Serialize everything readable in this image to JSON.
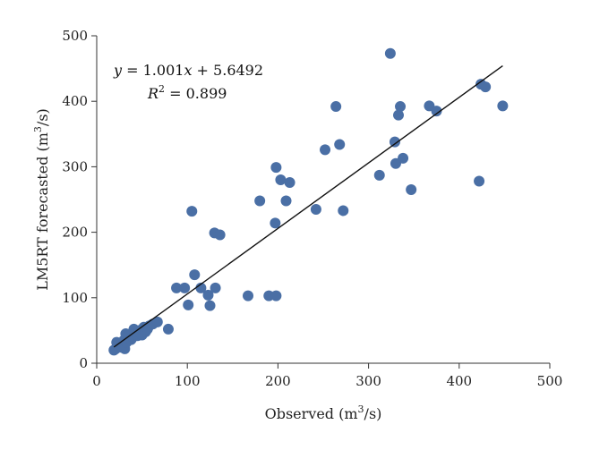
{
  "chart_data": {
    "type": "scatter",
    "title": "",
    "xlabel": {
      "base": "Observed (m",
      "sup": "3",
      "tail": "/s)"
    },
    "ylabel": {
      "base": "LM5RT forecasted (m",
      "sup": "3",
      "tail": "/s)"
    },
    "xlim": [
      0,
      500
    ],
    "ylim": [
      0,
      500
    ],
    "x_ticks": [
      "0",
      "100",
      "200",
      "300",
      "400",
      "500"
    ],
    "y_ticks": [
      "0",
      "100",
      "200",
      "300",
      "400",
      "500"
    ],
    "grid": false,
    "marker_color": "#4a6fa5",
    "line_color": "#111111",
    "equation": {
      "line1_y": "y",
      "line1_eq": " = 1.001",
      "line1_x": "x",
      "line1_tail": " + 5.6492",
      "line2_r": "R",
      "line2_sup": "2",
      "line2_tail": " = 0.899"
    },
    "fit": {
      "slope": 1.001,
      "intercept": 5.6492,
      "x_range": [
        19,
        448
      ]
    },
    "points": [
      {
        "x": 19,
        "y": 20
      },
      {
        "x": 21,
        "y": 22
      },
      {
        "x": 22,
        "y": 32
      },
      {
        "x": 24,
        "y": 25
      },
      {
        "x": 25,
        "y": 28
      },
      {
        "x": 27,
        "y": 30
      },
      {
        "x": 28,
        "y": 24
      },
      {
        "x": 30,
        "y": 35
      },
      {
        "x": 31,
        "y": 22
      },
      {
        "x": 32,
        "y": 45
      },
      {
        "x": 33,
        "y": 32
      },
      {
        "x": 35,
        "y": 38
      },
      {
        "x": 36,
        "y": 42
      },
      {
        "x": 38,
        "y": 36
      },
      {
        "x": 40,
        "y": 40
      },
      {
        "x": 41,
        "y": 52
      },
      {
        "x": 43,
        "y": 46
      },
      {
        "x": 45,
        "y": 42
      },
      {
        "x": 47,
        "y": 50
      },
      {
        "x": 48,
        "y": 45
      },
      {
        "x": 50,
        "y": 43
      },
      {
        "x": 52,
        "y": 55
      },
      {
        "x": 54,
        "y": 48
      },
      {
        "x": 56,
        "y": 52
      },
      {
        "x": 58,
        "y": 57
      },
      {
        "x": 62,
        "y": 60
      },
      {
        "x": 67,
        "y": 63
      },
      {
        "x": 79,
        "y": 52
      },
      {
        "x": 88,
        "y": 115
      },
      {
        "x": 97,
        "y": 115
      },
      {
        "x": 101,
        "y": 89
      },
      {
        "x": 105,
        "y": 232
      },
      {
        "x": 108,
        "y": 135
      },
      {
        "x": 115,
        "y": 115
      },
      {
        "x": 123,
        "y": 104
      },
      {
        "x": 125,
        "y": 88
      },
      {
        "x": 130,
        "y": 199
      },
      {
        "x": 131,
        "y": 115
      },
      {
        "x": 136,
        "y": 196
      },
      {
        "x": 167,
        "y": 103
      },
      {
        "x": 180,
        "y": 248
      },
      {
        "x": 190,
        "y": 103
      },
      {
        "x": 197,
        "y": 214
      },
      {
        "x": 198,
        "y": 103
      },
      {
        "x": 198,
        "y": 299
      },
      {
        "x": 203,
        "y": 280
      },
      {
        "x": 209,
        "y": 248
      },
      {
        "x": 213,
        "y": 276
      },
      {
        "x": 242,
        "y": 235
      },
      {
        "x": 252,
        "y": 326
      },
      {
        "x": 264,
        "y": 392
      },
      {
        "x": 268,
        "y": 334
      },
      {
        "x": 272,
        "y": 233
      },
      {
        "x": 312,
        "y": 287
      },
      {
        "x": 324,
        "y": 473
      },
      {
        "x": 329,
        "y": 338
      },
      {
        "x": 330,
        "y": 305
      },
      {
        "x": 333,
        "y": 379
      },
      {
        "x": 335,
        "y": 392
      },
      {
        "x": 338,
        "y": 313
      },
      {
        "x": 347,
        "y": 265
      },
      {
        "x": 367,
        "y": 393
      },
      {
        "x": 375,
        "y": 385
      },
      {
        "x": 422,
        "y": 278
      },
      {
        "x": 424,
        "y": 426
      },
      {
        "x": 429,
        "y": 422
      },
      {
        "x": 448,
        "y": 393
      }
    ]
  }
}
